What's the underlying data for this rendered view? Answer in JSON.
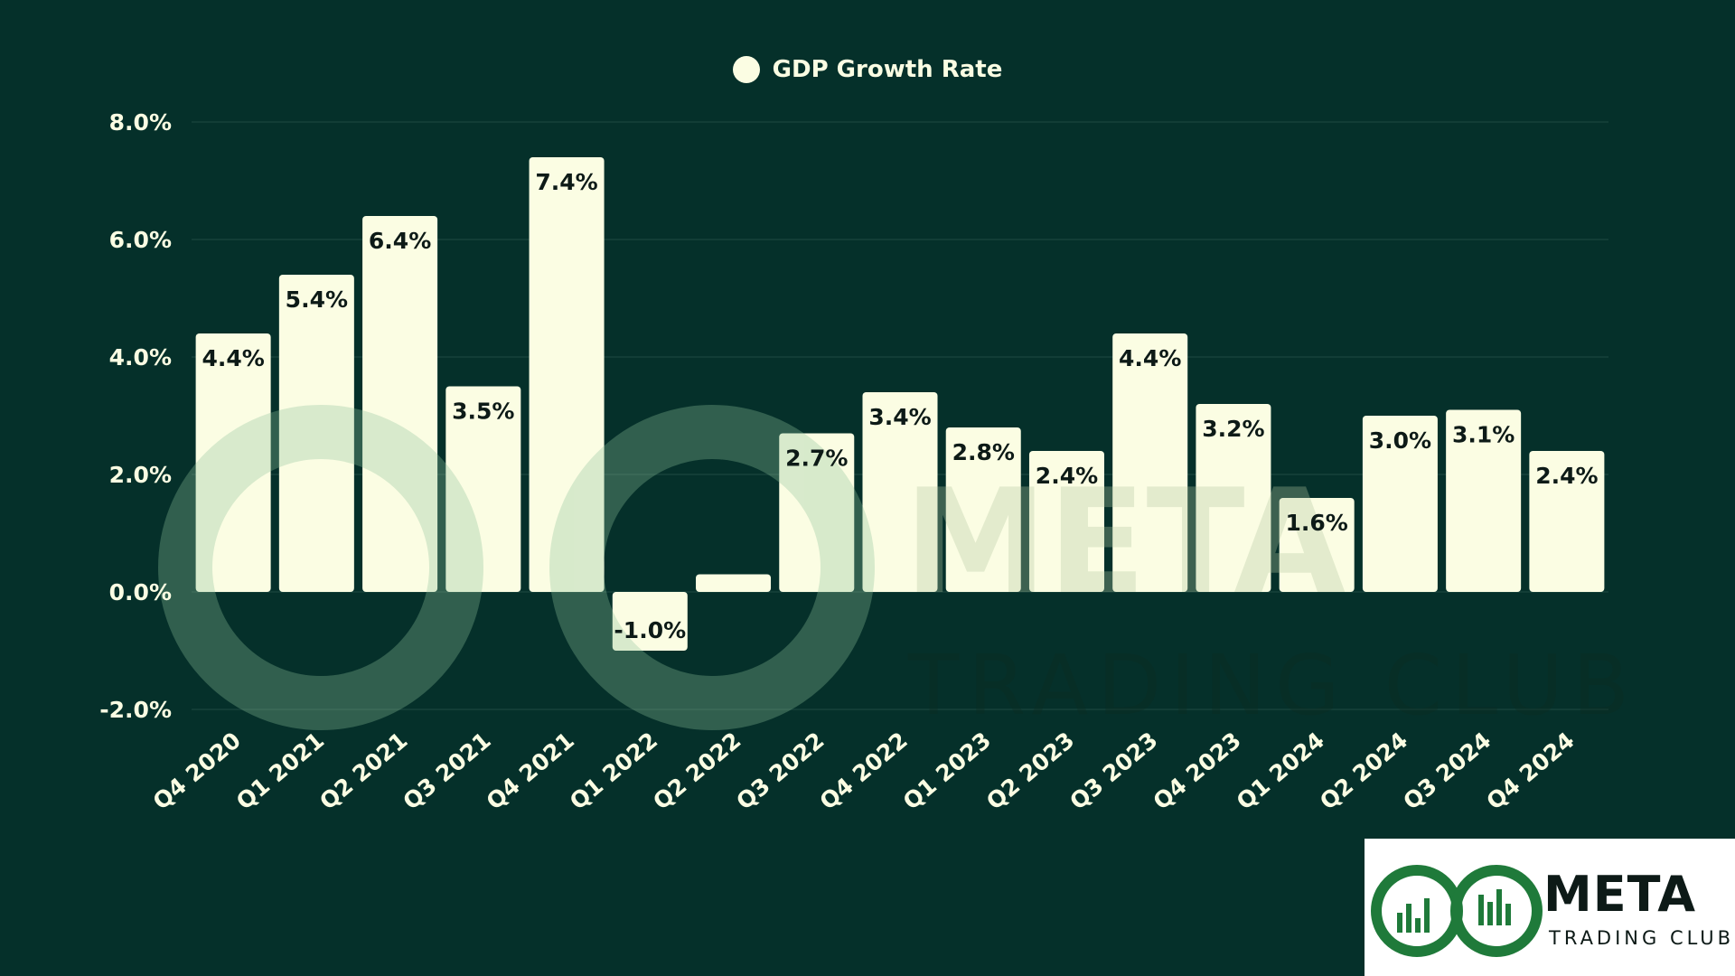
{
  "chart_data": {
    "type": "bar",
    "legend": {
      "label": "GDP Growth Rate",
      "position": "top-center"
    },
    "categories": [
      "Q4 2020",
      "Q1 2021",
      "Q2 2021",
      "Q3 2021",
      "Q4 2021",
      "Q1 2022",
      "Q2 2022",
      "Q3 2022",
      "Q4 2022",
      "Q1 2023",
      "Q2 2023",
      "Q3 2023",
      "Q4 2023",
      "Q1 2024",
      "Q2 2024",
      "Q3 2024",
      "Q4 2024"
    ],
    "values": [
      4.4,
      5.4,
      6.4,
      3.5,
      7.4,
      -1.0,
      0.3,
      2.7,
      3.4,
      2.8,
      2.4,
      4.4,
      3.2,
      1.6,
      3.0,
      3.1,
      2.4
    ],
    "data_labels": [
      "4.4%",
      "5.4%",
      "6.4%",
      "3.5%",
      "7.4%",
      "-1.0%",
      "",
      "2.7%",
      "3.4%",
      "2.8%",
      "2.4%",
      "4.4%",
      "3.2%",
      "1.6%",
      "3.0%",
      "3.1%",
      "2.4%"
    ],
    "ylim": [
      -2.0,
      8.0
    ],
    "yticks": [
      8.0,
      6.0,
      4.0,
      2.0,
      0.0,
      -2.0
    ],
    "ytick_labels": [
      "8.0%",
      "6.0%",
      "4.0%",
      "2.0%",
      "0.0%",
      "-2.0%"
    ],
    "grid": true,
    "colors": {
      "background": "#05302a",
      "bar": "#fbfde3",
      "text": "#fbfde3",
      "gridline": "#1e4a42"
    }
  },
  "watermark": {
    "word": "META",
    "sub": "TRADING CLUB"
  },
  "logo": {
    "word": "META",
    "sub": "TRADING CLUB",
    "icon": "infinity-chart-icon"
  }
}
